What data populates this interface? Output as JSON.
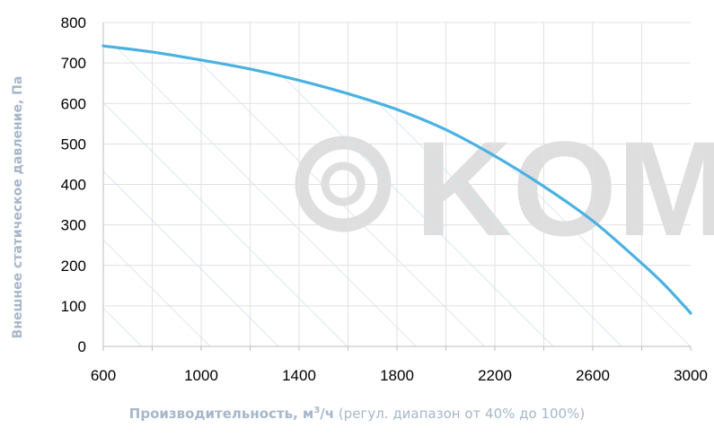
{
  "chart_data": {
    "type": "line",
    "title": "",
    "xlabel_main": "Производительность, м",
    "xlabel_sup": "3",
    "xlabel_unit": "/ч",
    "xlabel_note": " (регул. диапазон от 40% до 100%)",
    "ylabel": "Внешнее статическое давление, Па",
    "xlim": [
      600,
      3000
    ],
    "ylim": [
      0,
      800
    ],
    "x_ticks": [
      600,
      1000,
      1400,
      1800,
      2200,
      2600,
      3000
    ],
    "y_ticks": [
      0,
      100,
      200,
      300,
      400,
      500,
      600,
      700,
      800
    ],
    "grid": true,
    "hatched_region": "under-curve",
    "watermark": "KOMF",
    "series": [
      {
        "color": "#4bb1e1",
        "x": [
          600,
          800,
          1000,
          1200,
          1400,
          1600,
          1800,
          2000,
          2200,
          2400,
          2600,
          2800,
          2900,
          3000
        ],
        "y": [
          742,
          727,
          707,
          685,
          657,
          624,
          585,
          535,
          470,
          395,
          310,
          205,
          148,
          82
        ]
      }
    ]
  }
}
